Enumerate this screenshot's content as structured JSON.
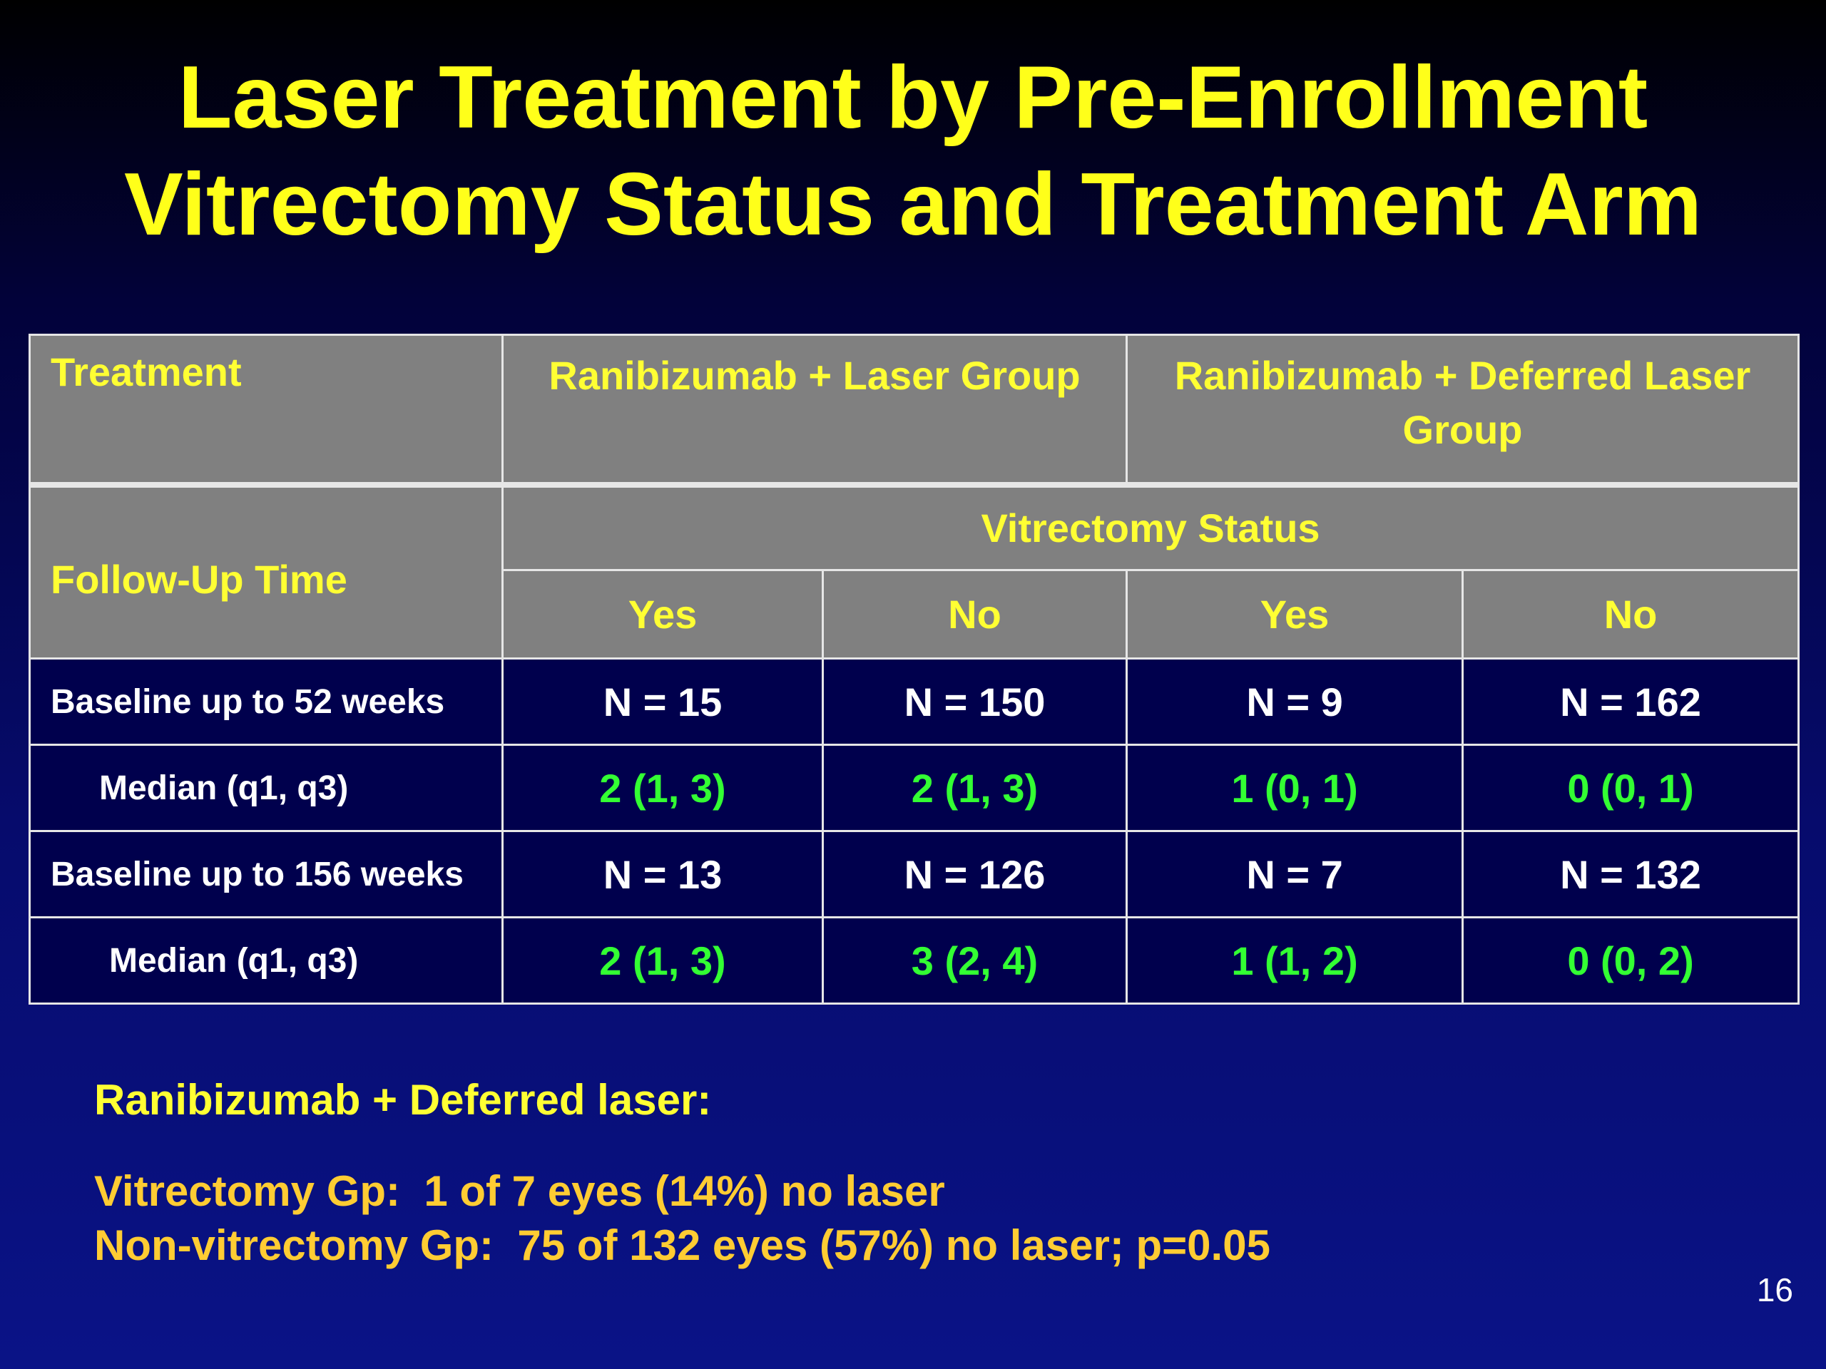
{
  "title": {
    "line1": "Laser Treatment by Pre-Enrollment",
    "line2": "Vitrectomy Status and Treatment Arm"
  },
  "table": {
    "treatment_label": "Treatment",
    "group1_label": "Ranibizumab + Laser Group",
    "group2_label": "Ranibizumab + Deferred Laser Group",
    "followup_label": "Follow-Up Time",
    "vitrectomy_status_label": "Vitrectomy Status",
    "status_columns": [
      "Yes",
      "No",
      "Yes",
      "No"
    ],
    "rows": [
      {
        "label": "Baseline up to 52 weeks",
        "cells": [
          "N = 15",
          "N = 150",
          "N = 9",
          "N = 162"
        ]
      },
      {
        "label": "Median (q1, q3)",
        "cells": [
          "2 (1, 3)",
          "2 (1, 3)",
          "1 (0, 1)",
          "0 (0, 1)"
        ]
      },
      {
        "label": "Baseline up to 156 weeks",
        "cells": [
          "N = 13",
          "N = 126",
          "N = 7",
          "N = 132"
        ]
      },
      {
        "label": "Median (q1, q3)",
        "cells": [
          "2 (1, 3)",
          "3 (2, 4)",
          "1 (1, 2)",
          "0 (0, 2)"
        ]
      }
    ]
  },
  "notes": {
    "heading": "Ranibizumab + Deferred laser:",
    "line1": "Vitrectomy Gp:  1 of 7 eyes (14%) no laser",
    "line2": "Non-vitrectomy Gp:  75 of 132 eyes (57%) no laser; p=0.05"
  },
  "page_number": "16",
  "colors": {
    "title": "#ffff1a",
    "header_bg": "#808080",
    "header_text": "#ffff33",
    "body_bg": "#00004d",
    "median_text": "#33ff33",
    "note_text": "#ffcc33"
  }
}
